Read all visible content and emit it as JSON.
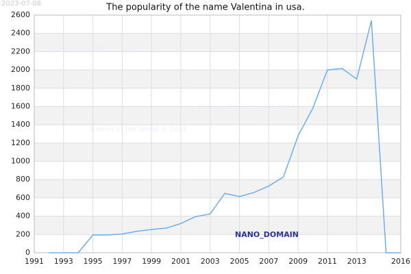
{
  "chart_data": {
    "type": "line",
    "title": "The popularity of the name Valentina in usa.",
    "date": "2023-07-08",
    "watermarks": [
      "Names of the World © 2023",
      "Names of the World © 2023",
      "Names of the World © 2023"
    ],
    "domain_label": "NANO_DOMAIN",
    "x": [
      1992,
      1993,
      1994,
      1995,
      1996,
      1997,
      1998,
      1999,
      2000,
      2001,
      2002,
      2003,
      2004,
      2005,
      2006,
      2007,
      2008,
      2009,
      2010,
      2011,
      2012,
      2013,
      2014,
      2015,
      2016
    ],
    "series": [
      {
        "name": "Valentina",
        "color": "#6aaef0",
        "values": [
          0,
          0,
          0,
          195,
          195,
          205,
          235,
          255,
          270,
          320,
          395,
          425,
          650,
          615,
          660,
          730,
          830,
          1280,
          1580,
          2000,
          2015,
          1900,
          2540,
          0,
          0
        ]
      }
    ],
    "xlim": [
      1991,
      2016
    ],
    "xticks": [
      1991,
      1993,
      1995,
      1997,
      1999,
      2001,
      2003,
      2005,
      2007,
      2009,
      2011,
      2013,
      2016
    ],
    "ylim": [
      0,
      2600
    ],
    "yticks": [
      0,
      200,
      400,
      600,
      800,
      1000,
      1200,
      1400,
      1600,
      1800,
      2000,
      2200,
      2400,
      2600
    ],
    "grid": true
  }
}
